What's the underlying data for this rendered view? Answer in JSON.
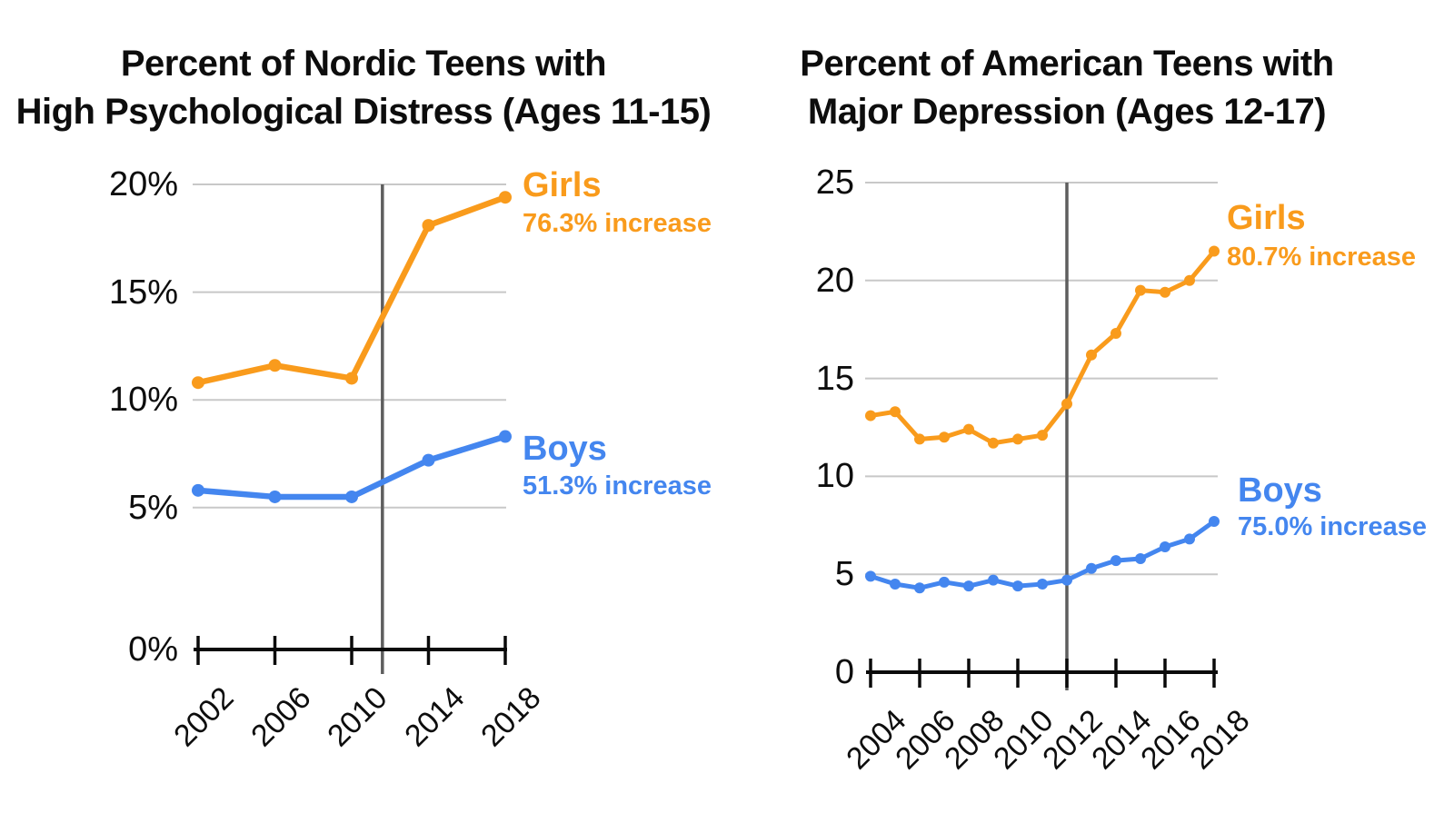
{
  "background": "#ffffff",
  "colors": {
    "girls": "#f99b1c",
    "boys": "#4486ef",
    "vline": "#5e5e5e",
    "gridline": "#c8c8c8",
    "axis": "#0a0a0a",
    "text": "#0d0d0d"
  },
  "chart_data": [
    {
      "type": "line",
      "title": "Percent of Nordic Teens with High Psychological Distress (Ages 11-15)",
      "title_lines": [
        "Percent of Nordic Teens with",
        "High Psychological Distress (Ages 11-15)"
      ],
      "xlabel": "",
      "ylabel": "",
      "xlim": [
        2002,
        2018
      ],
      "ylim": [
        0,
        20
      ],
      "grid": true,
      "vline_x": 2011.6,
      "x": [
        2002,
        2006,
        2010,
        2014,
        2018
      ],
      "x_tick_years": [
        2002,
        2006,
        2010,
        2014,
        2018
      ],
      "x_tick_labels": [
        "2002",
        "2006",
        "2010",
        "2014",
        "2018"
      ],
      "y_tick_values": [
        20,
        15,
        10,
        5,
        0
      ],
      "y_tick_labels": [
        "20%",
        "15%",
        "10%",
        "5%",
        "0%"
      ],
      "legend_position": "right-inline",
      "series": [
        {
          "name": "Girls",
          "color_key": "girls",
          "values": [
            10.8,
            11.6,
            11.0,
            18.1,
            19.4
          ],
          "annotation": "Girls",
          "annotation_sub": "76.3% increase"
        },
        {
          "name": "Boys",
          "color_key": "boys",
          "values": [
            5.8,
            5.5,
            5.5,
            7.2,
            8.3
          ],
          "annotation": "Boys",
          "annotation_sub": "51.3% increase"
        }
      ]
    },
    {
      "type": "line",
      "title": "Percent of American Teens with Major Depression (Ages 12-17)",
      "title_lines": [
        "Percent of American Teens with",
        "Major Depression (Ages 12-17)"
      ],
      "xlabel": "",
      "ylabel": "",
      "xlim": [
        2004,
        2018
      ],
      "ylim": [
        0,
        25
      ],
      "grid": true,
      "vline_x": 2012,
      "x": [
        2004,
        2005,
        2006,
        2007,
        2008,
        2009,
        2010,
        2011,
        2012,
        2013,
        2014,
        2015,
        2016,
        2017,
        2018
      ],
      "x_tick_years": [
        2004,
        2006,
        2008,
        2010,
        2012,
        2014,
        2016,
        2018
      ],
      "x_tick_labels": [
        "2004",
        "2006",
        "2008",
        "2010",
        "2012",
        "2014",
        "2016",
        "2018"
      ],
      "y_tick_values": [
        25,
        20,
        15,
        10,
        5,
        0
      ],
      "y_tick_labels": [
        "25",
        "20",
        "15",
        "10",
        "5",
        "0"
      ],
      "legend_position": "right-inline",
      "series": [
        {
          "name": "Girls",
          "color_key": "girls",
          "values": [
            13.1,
            13.3,
            11.9,
            12.0,
            12.4,
            11.7,
            11.9,
            12.1,
            13.7,
            16.2,
            17.3,
            19.5,
            19.4,
            20.0,
            21.5
          ],
          "annotation": "Girls",
          "annotation_sub": "80.7% increase"
        },
        {
          "name": "Boys",
          "color_key": "boys",
          "values": [
            4.9,
            4.5,
            4.3,
            4.6,
            4.4,
            4.7,
            4.4,
            4.5,
            4.7,
            5.3,
            5.7,
            5.8,
            6.4,
            6.8,
            7.7
          ],
          "annotation": "Boys",
          "annotation_sub": "75.0% increase"
        }
      ]
    }
  ]
}
